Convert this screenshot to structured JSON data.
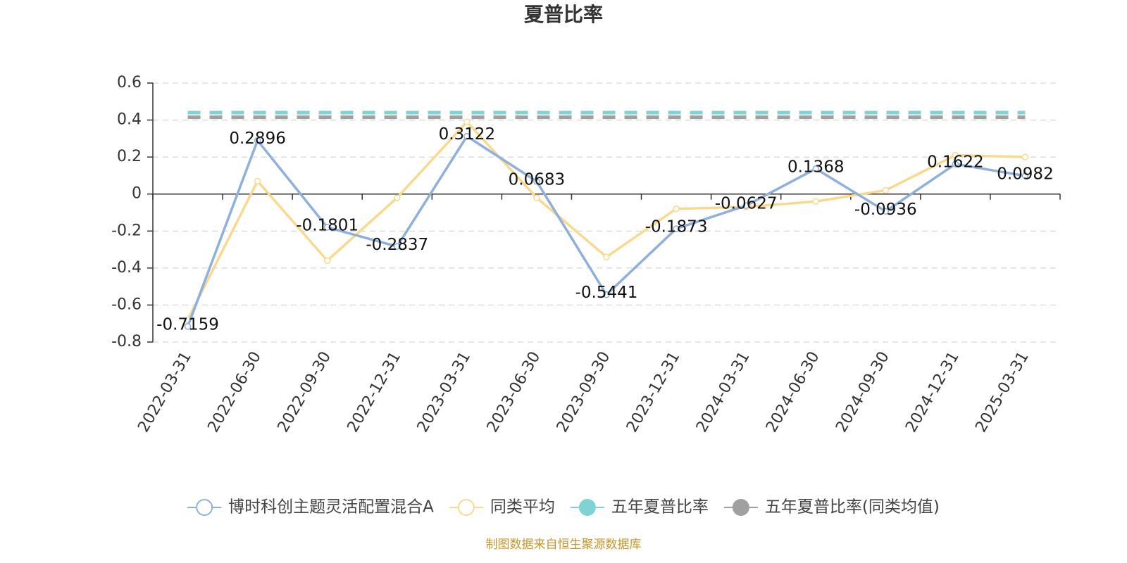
{
  "chart_data": {
    "type": "line",
    "title": "夏普比率",
    "categories": [
      "2022-03-31",
      "2022-06-30",
      "2022-09-30",
      "2022-12-31",
      "2023-03-31",
      "2023-06-30",
      "2023-09-30",
      "2023-12-31",
      "2024-03-31",
      "2024-06-30",
      "2024-09-30",
      "2024-12-31",
      "2025-03-31"
    ],
    "series": [
      {
        "name": "博时科创主题灵活配置混合A",
        "color": "#8fafdc",
        "values": [
          -0.7159,
          0.2896,
          -0.1801,
          -0.2837,
          0.3122,
          0.0683,
          -0.5441,
          -0.1873,
          -0.0627,
          0.1368,
          -0.0936,
          0.1622,
          0.0982
        ],
        "data_labels": true
      },
      {
        "name": "同类平均",
        "color": "#f9d98e",
        "values": [
          -0.68,
          0.07,
          -0.36,
          -0.02,
          0.39,
          -0.02,
          -0.34,
          -0.08,
          -0.07,
          -0.04,
          0.02,
          0.21,
          0.2
        ]
      },
      {
        "name": "五年夏普比率",
        "color": "#7fd3d3",
        "value": 0.44,
        "style": "dashed"
      },
      {
        "name": "五年夏普比率(同类均值)",
        "color": "#a0a0a0",
        "value": 0.415,
        "style": "dashed"
      }
    ],
    "ylim": [
      -0.8,
      0.6
    ],
    "yticks": [
      -0.8,
      -0.6,
      -0.4,
      -0.2,
      0,
      0.2,
      0.4,
      0.6
    ],
    "grid": true,
    "legend": "bottom",
    "source": "制图数据来自恒生聚源数据库"
  }
}
